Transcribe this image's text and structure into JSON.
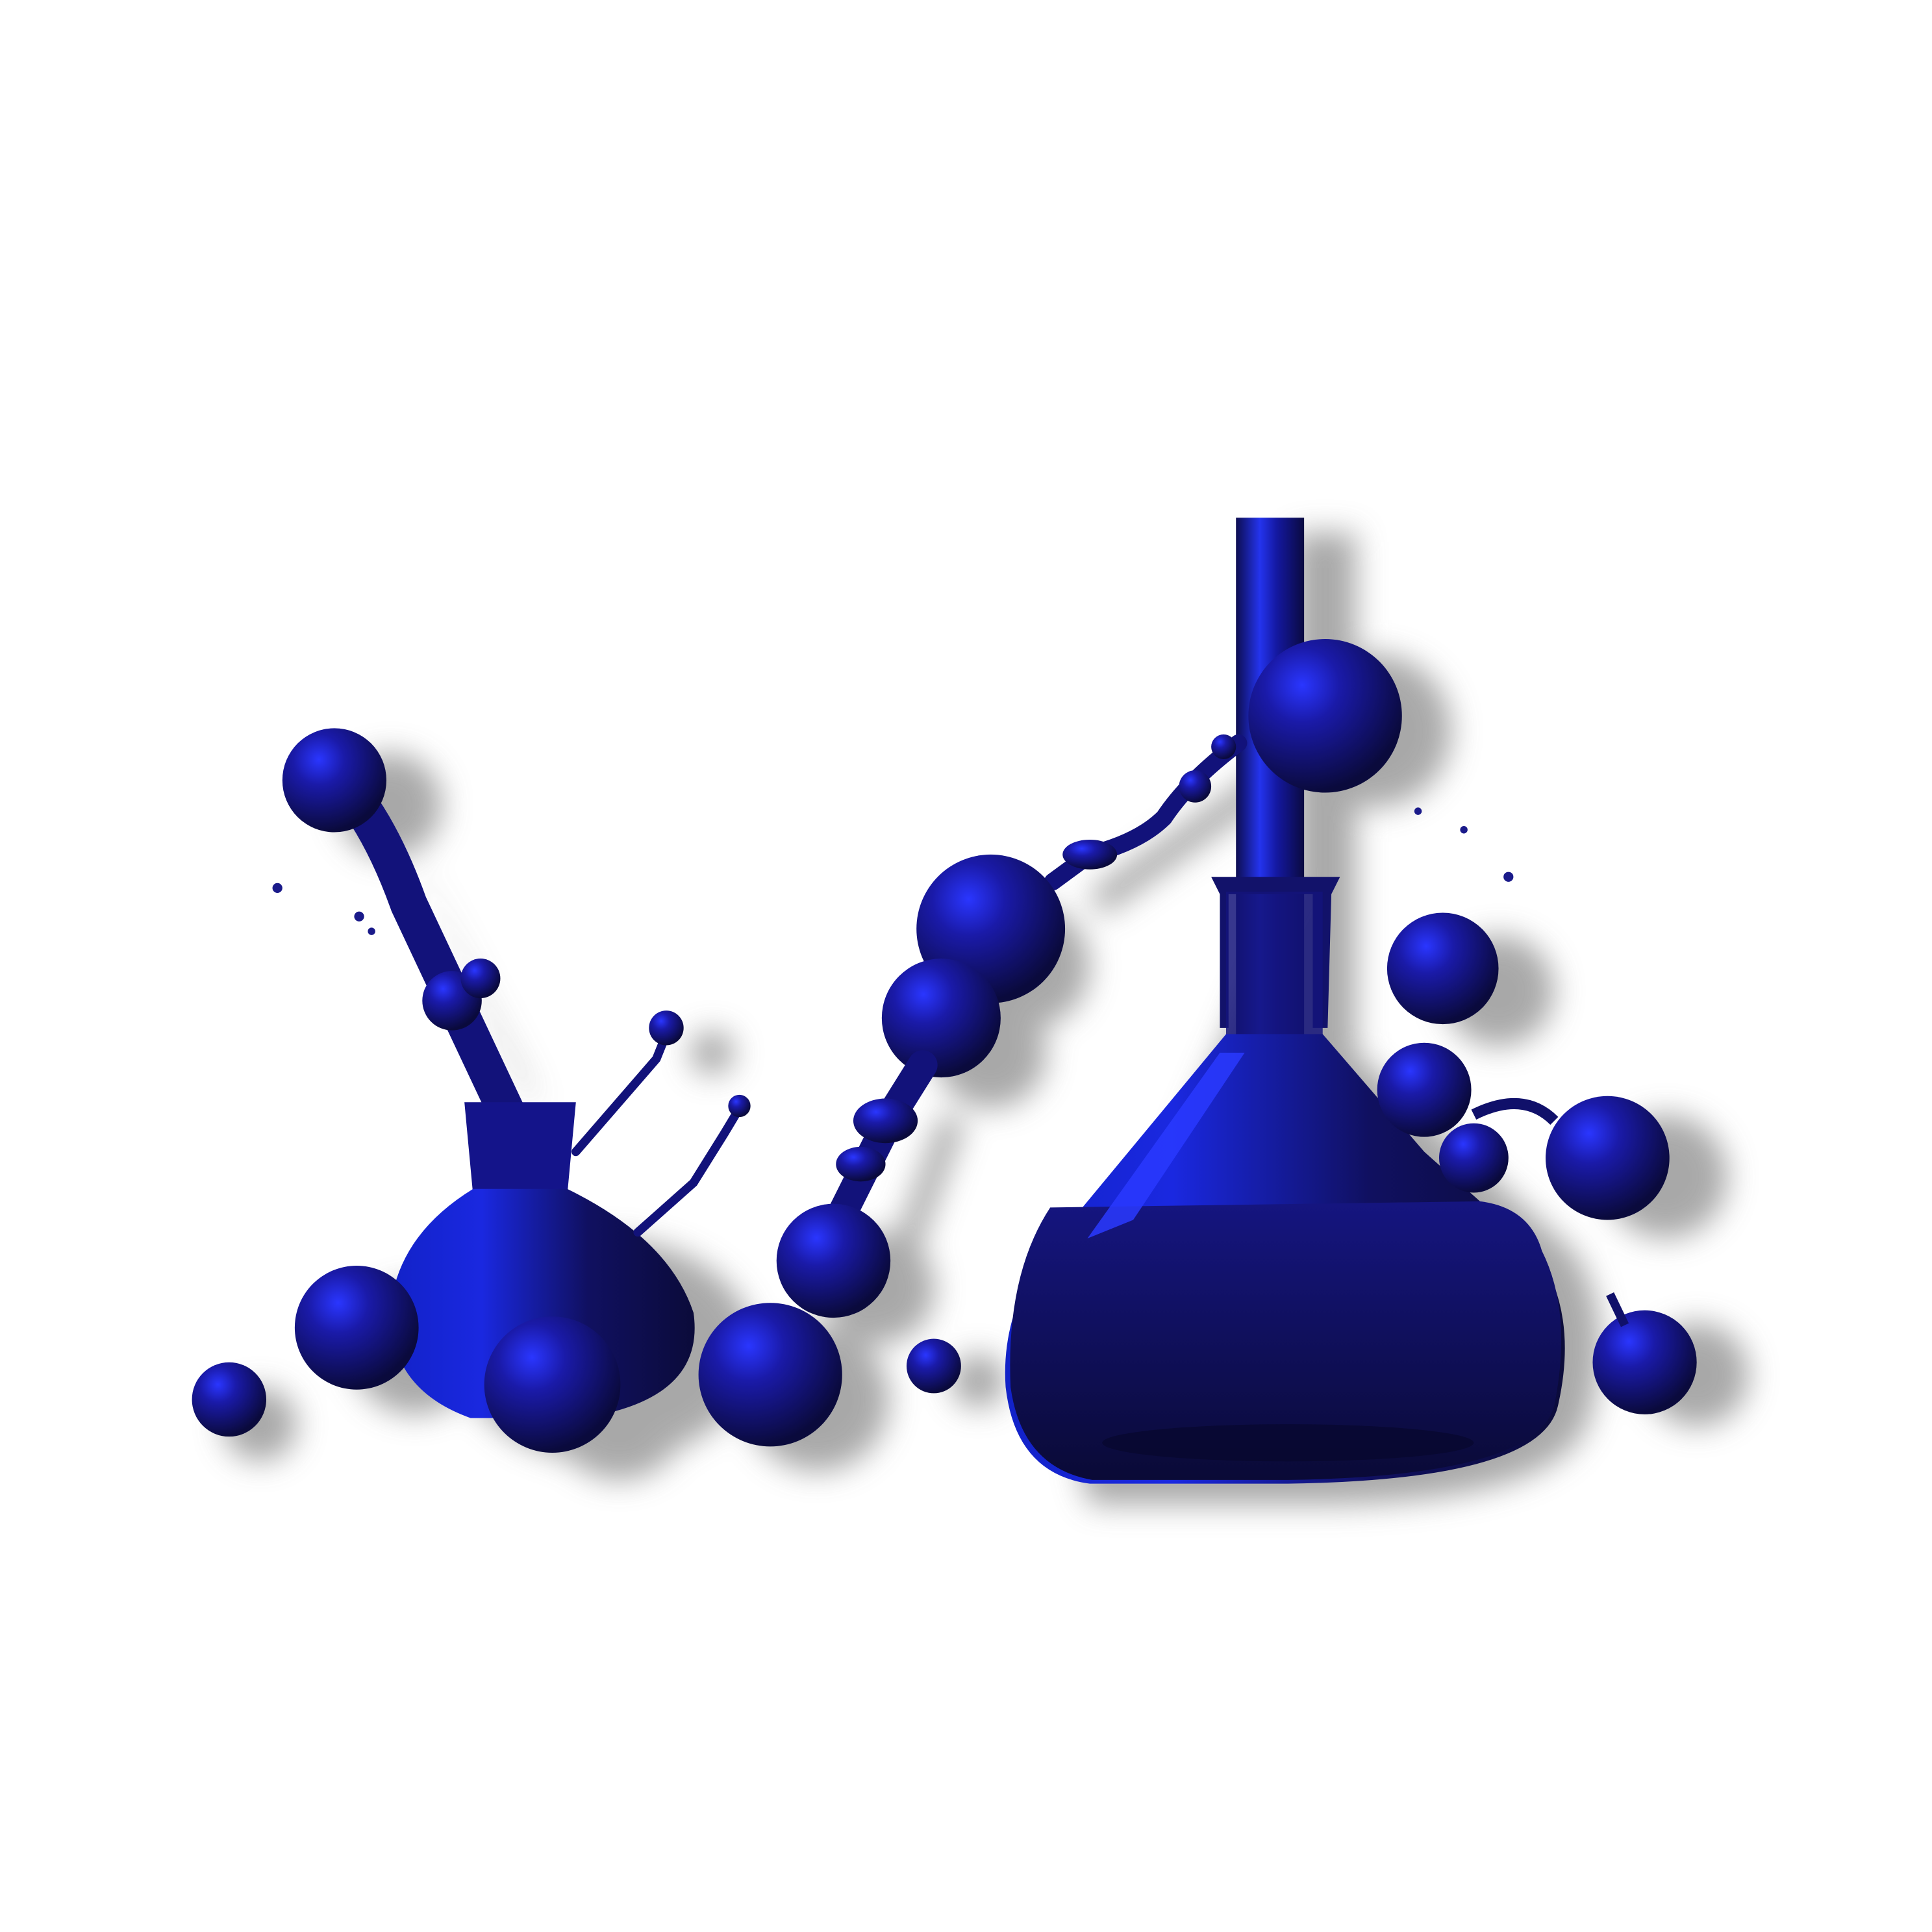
{
  "scene": {
    "background": "#ffffff",
    "ink_dark": "#0d0d4a",
    "ink_mid": "#14148f",
    "ink_bright": "#1f2ee6",
    "shadow": "#9a9a9a"
  }
}
